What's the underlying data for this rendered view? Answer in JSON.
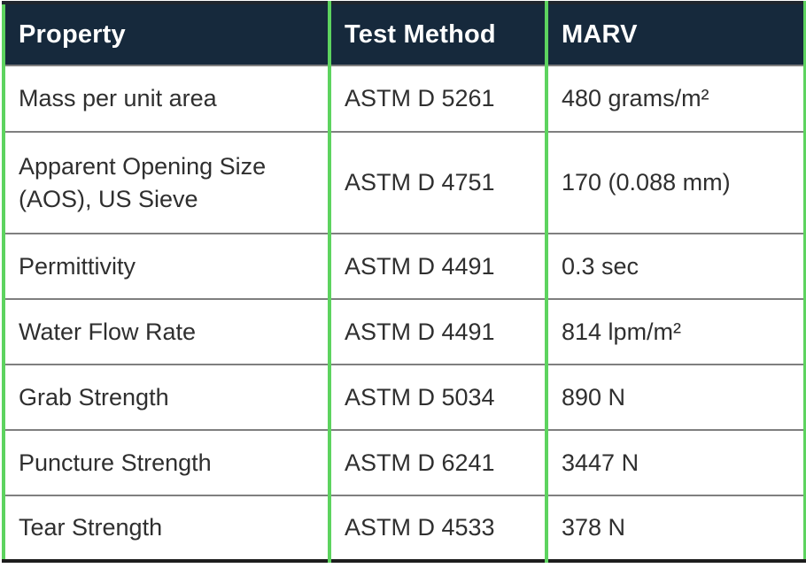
{
  "table": {
    "columns": [
      {
        "label": "Property"
      },
      {
        "label": "Test Method"
      },
      {
        "label": "MARV"
      }
    ],
    "rows": [
      {
        "property": "Mass per unit area",
        "test_method": "ASTM D 5261",
        "marv": "480 grams/m²"
      },
      {
        "property": "Apparent Opening Size (AOS), US Sieve",
        "test_method": "ASTM D 4751",
        "marv": "170 (0.088 mm)"
      },
      {
        "property": "Permittivity",
        "test_method": "ASTM D 4491",
        "marv": "0.3 sec"
      },
      {
        "property": "Water Flow Rate",
        "test_method": "ASTM D 4491",
        "marv": "814 lpm/m²"
      },
      {
        "property": "Grab Strength",
        "test_method": "ASTM D 5034",
        "marv": "890 N"
      },
      {
        "property": "Puncture Strength",
        "test_method": "ASTM D 6241",
        "marv": "3447 N"
      },
      {
        "property": "Tear Strength",
        "test_method": "ASTM D 4533",
        "marv": "378 N"
      }
    ],
    "colors": {
      "header_bg": "#16293c",
      "header_text": "#ffffff",
      "column_divider_green": "#5dd35f",
      "row_divider_gray": "#7f7f7f",
      "outer_border_dark": "#1d1d1d",
      "cell_text": "#2f2f2f"
    }
  }
}
